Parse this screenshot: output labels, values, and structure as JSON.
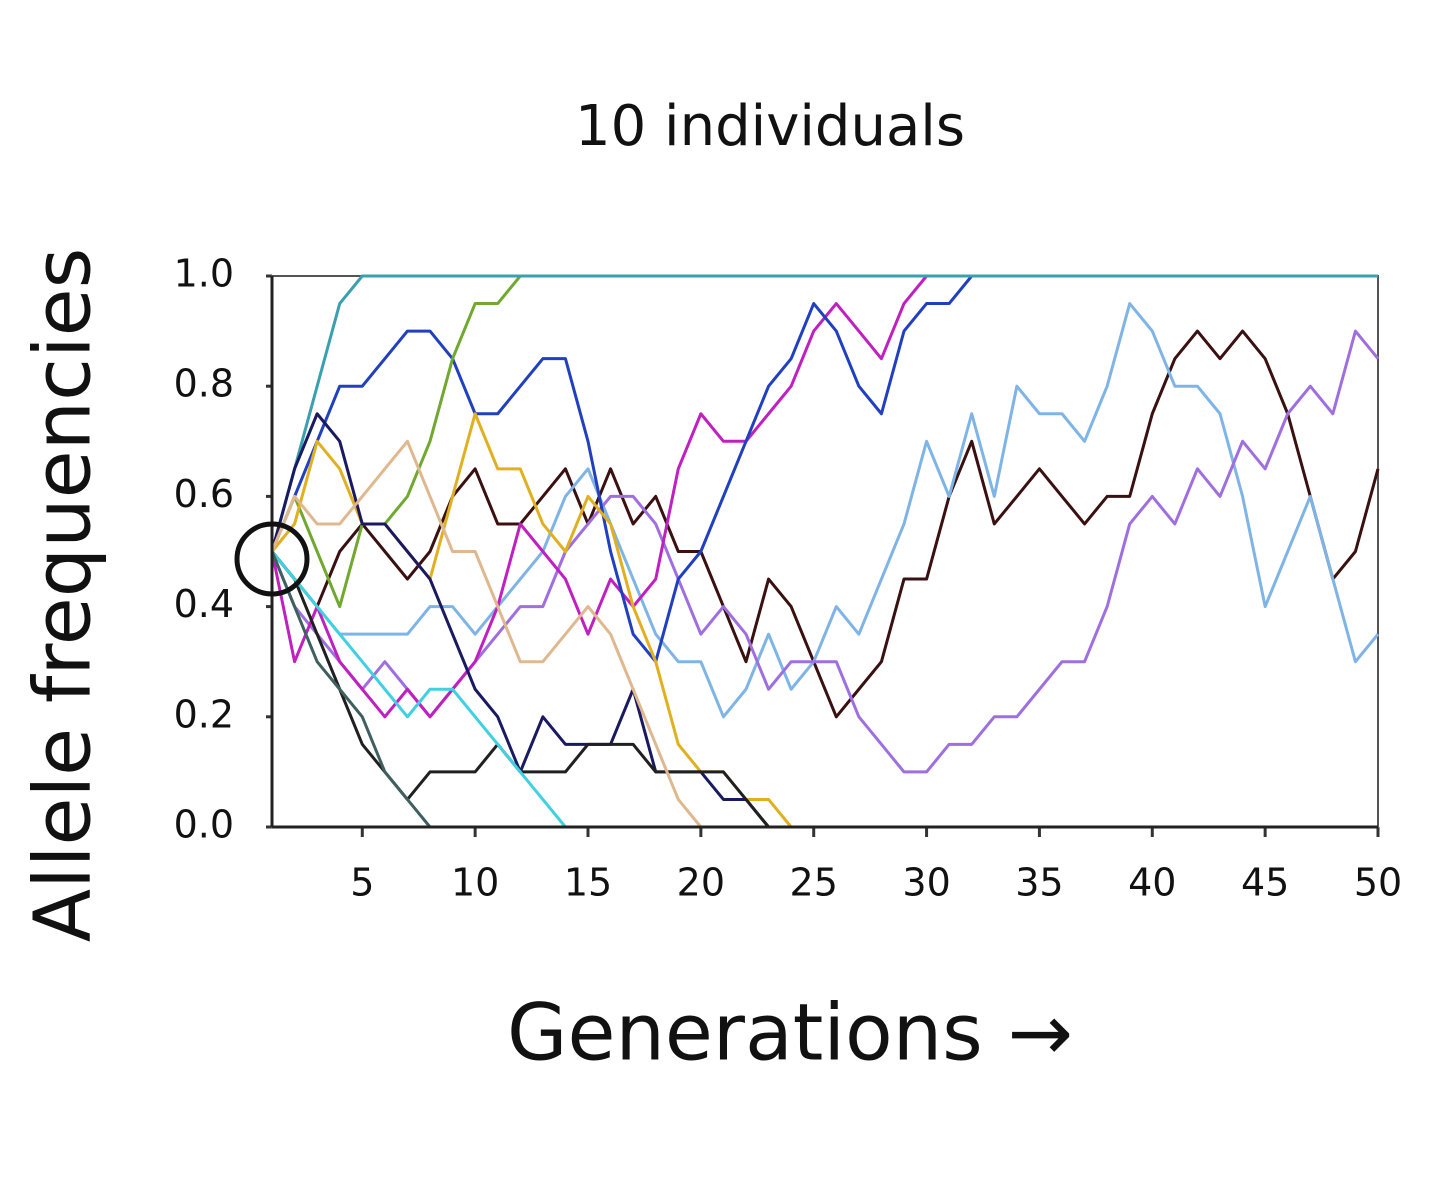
{
  "chart_data": {
    "type": "line",
    "title": "10 individuals",
    "x_label": "Generations →",
    "y_label": "Allele frequencies",
    "x": [
      1,
      2,
      3,
      4,
      5,
      6,
      7,
      8,
      9,
      10,
      11,
      12,
      13,
      14,
      15,
      16,
      17,
      18,
      19,
      20,
      21,
      22,
      23,
      24,
      25,
      26,
      27,
      28,
      29,
      30,
      31,
      32,
      33,
      34,
      35,
      36,
      37,
      38,
      39,
      40,
      41,
      42,
      43,
      44,
      45,
      46,
      47,
      48,
      49,
      50
    ],
    "xlim": [
      1,
      50
    ],
    "xticks": [
      5,
      10,
      15,
      20,
      25,
      30,
      35,
      40,
      45,
      50
    ],
    "ylim": [
      0,
      1
    ],
    "yticks": [
      {
        "value": 0,
        "label": "0.0"
      },
      0.2,
      0.4,
      0.6,
      0.8,
      {
        "value": 1,
        "label": "1.0"
      }
    ],
    "series": [
      {
        "color": "#3a1010",
        "values": [
          0.5,
          0.45,
          0.4,
          0.5,
          0.55,
          0.5,
          0.45,
          0.5,
          0.6,
          0.65,
          0.55,
          0.55,
          0.6,
          0.65,
          0.55,
          0.65,
          0.55,
          0.6,
          0.5,
          0.5,
          0.4,
          0.3,
          0.45,
          0.4,
          0.3,
          0.2,
          0.25,
          0.3,
          0.45,
          0.45,
          0.6,
          0.7,
          0.55,
          0.6,
          0.65,
          0.6,
          0.55,
          0.6,
          0.6,
          0.75,
          0.85,
          0.9,
          0.85,
          0.9,
          0.85,
          0.75,
          0.6,
          0.45,
          0.5,
          0.65
        ]
      },
      {
        "color": "#7fb4e6",
        "values": [
          0.5,
          0.45,
          0.4,
          0.35,
          0.35,
          0.35,
          0.35,
          0.4,
          0.4,
          0.35,
          0.4,
          0.45,
          0.5,
          0.6,
          0.65,
          0.55,
          0.45,
          0.35,
          0.3,
          0.3,
          0.2,
          0.25,
          0.35,
          0.25,
          0.3,
          0.4,
          0.35,
          0.45,
          0.55,
          0.7,
          0.6,
          0.75,
          0.6,
          0.8,
          0.75,
          0.75,
          0.7,
          0.8,
          0.95,
          0.9,
          0.8,
          0.8,
          0.75,
          0.6,
          0.4,
          0.5,
          0.6,
          0.45,
          0.3,
          0.35
        ]
      },
      {
        "color": "#9f6fe0",
        "values": [
          0.5,
          0.4,
          0.35,
          0.3,
          0.25,
          0.3,
          0.25,
          0.2,
          0.25,
          0.3,
          0.35,
          0.4,
          0.4,
          0.5,
          0.55,
          0.6,
          0.6,
          0.55,
          0.45,
          0.35,
          0.4,
          0.35,
          0.25,
          0.3,
          0.3,
          0.3,
          0.2,
          0.15,
          0.1,
          0.1,
          0.15,
          0.15,
          0.2,
          0.2,
          0.25,
          0.3,
          0.3,
          0.4,
          0.55,
          0.6,
          0.55,
          0.65,
          0.6,
          0.7,
          0.65,
          0.75,
          0.8,
          0.75,
          0.9,
          0.85
        ]
      },
      {
        "color": "#c020c0",
        "values": [
          0.5,
          0.3,
          0.4,
          0.3,
          0.25,
          0.2,
          0.25,
          0.2,
          0.25,
          0.3,
          0.4,
          0.55,
          0.5,
          0.45,
          0.35,
          0.45,
          0.4,
          0.45,
          0.65,
          0.75,
          0.7,
          0.7,
          0.75,
          0.8,
          0.9,
          0.95,
          0.9,
          0.85,
          0.95,
          1,
          1,
          1,
          1,
          1,
          1,
          1,
          1,
          1,
          1,
          1,
          1,
          1,
          1,
          1,
          1,
          1,
          1,
          1,
          1,
          1
        ]
      },
      {
        "color": "#2040c0",
        "values": [
          0.5,
          0.6,
          0.7,
          0.8,
          0.8,
          0.85,
          0.9,
          0.9,
          0.85,
          0.75,
          0.75,
          0.8,
          0.85,
          0.85,
          0.7,
          0.5,
          0.35,
          0.3,
          0.45,
          0.5,
          0.6,
          0.7,
          0.8,
          0.85,
          0.95,
          0.9,
          0.8,
          0.75,
          0.9,
          0.95,
          0.95,
          1,
          1,
          1,
          1,
          1,
          1,
          1,
          1,
          1,
          1,
          1,
          1,
          1,
          1,
          1,
          1,
          1,
          1,
          1
        ]
      },
      {
        "color": "#70a830",
        "values": [
          0.5,
          0.6,
          0.5,
          0.4,
          0.55,
          0.55,
          0.6,
          0.7,
          0.85,
          0.95,
          0.95,
          1,
          1,
          1,
          1,
          1,
          1,
          1,
          1,
          1,
          1,
          1,
          1,
          1,
          1,
          1,
          1,
          1,
          1,
          1,
          1,
          1,
          1,
          1,
          1,
          1,
          1,
          1,
          1,
          1,
          1,
          1,
          1,
          1,
          1,
          1,
          1,
          1,
          1,
          1
        ]
      },
      {
        "color": "#3aa0b0",
        "values": [
          0.5,
          0.65,
          0.8,
          0.95,
          1,
          1,
          1,
          1,
          1,
          1,
          1,
          1,
          1,
          1,
          1,
          1,
          1,
          1,
          1,
          1,
          1,
          1,
          1,
          1,
          1,
          1,
          1,
          1,
          1,
          1,
          1,
          1,
          1,
          1,
          1,
          1,
          1,
          1,
          1,
          1,
          1,
          1,
          1,
          1,
          1,
          1,
          1,
          1,
          1,
          1
        ]
      },
      {
        "color": "#e0b020",
        "values": [
          0.5,
          0.55,
          0.7,
          0.65,
          0.55,
          0.55,
          0.5,
          0.45,
          0.6,
          0.75,
          0.65,
          0.65,
          0.55,
          0.5,
          0.6,
          0.55,
          0.4,
          0.3,
          0.15,
          0.1,
          0.1,
          0.05,
          0.05,
          0,
          0,
          0,
          0,
          0,
          0,
          0,
          0,
          0,
          0,
          0,
          0,
          0,
          0,
          0,
          0,
          0,
          0,
          0,
          0,
          0,
          0,
          0,
          0,
          0,
          0,
          0
        ]
      },
      {
        "color": "#1a1a60",
        "values": [
          0.5,
          0.65,
          0.75,
          0.7,
          0.55,
          0.55,
          0.5,
          0.45,
          0.35,
          0.25,
          0.2,
          0.1,
          0.2,
          0.15,
          0.15,
          0.15,
          0.25,
          0.1,
          0.1,
          0.1,
          0.05,
          0.05,
          0,
          0,
          0,
          0,
          0,
          0,
          0,
          0,
          0,
          0,
          0,
          0,
          0,
          0,
          0,
          0,
          0,
          0,
          0,
          0,
          0,
          0,
          0,
          0,
          0,
          0,
          0,
          0
        ]
      },
      {
        "color": "#202020",
        "values": [
          0.5,
          0.45,
          0.35,
          0.25,
          0.15,
          0.1,
          0.05,
          0.1,
          0.1,
          0.1,
          0.15,
          0.1,
          0.1,
          0.1,
          0.15,
          0.15,
          0.15,
          0.1,
          0.1,
          0.1,
          0.1,
          0.05,
          0,
          0,
          0,
          0,
          0,
          0,
          0,
          0,
          0,
          0,
          0,
          0,
          0,
          0,
          0,
          0,
          0,
          0,
          0,
          0,
          0,
          0,
          0,
          0,
          0,
          0,
          0,
          0
        ]
      },
      {
        "color": "#40d0e0",
        "values": [
          0.5,
          0.45,
          0.4,
          0.35,
          0.3,
          0.25,
          0.2,
          0.25,
          0.25,
          0.2,
          0.15,
          0.1,
          0.05,
          0,
          0,
          0,
          0,
          0,
          0,
          0,
          0,
          0,
          0,
          0,
          0,
          0,
          0,
          0,
          0,
          0,
          0,
          0,
          0,
          0,
          0,
          0,
          0,
          0,
          0,
          0,
          0,
          0,
          0,
          0,
          0,
          0,
          0,
          0,
          0,
          0
        ]
      },
      {
        "color": "#e0b890",
        "values": [
          0.5,
          0.6,
          0.55,
          0.55,
          0.6,
          0.65,
          0.7,
          0.6,
          0.5,
          0.5,
          0.4,
          0.3,
          0.3,
          0.35,
          0.4,
          0.35,
          0.25,
          0.15,
          0.05,
          0,
          0,
          0,
          0,
          0,
          0,
          0,
          0,
          0,
          0,
          0,
          0,
          0,
          0,
          0,
          0,
          0,
          0,
          0,
          0,
          0,
          0,
          0,
          0,
          0,
          0,
          0,
          0,
          0,
          0,
          0
        ]
      },
      {
        "color": "#406060",
        "values": [
          0.5,
          0.4,
          0.3,
          0.25,
          0.2,
          0.1,
          0.05,
          0,
          0,
          0,
          0,
          0,
          0,
          0,
          0,
          0,
          0,
          0,
          0,
          0,
          0,
          0,
          0,
          0,
          0,
          0,
          0,
          0,
          0,
          0,
          0,
          0,
          0,
          0,
          0,
          0,
          0,
          0,
          0,
          0,
          0,
          0,
          0,
          0,
          0,
          0,
          0,
          0,
          0,
          0
        ]
      }
    ]
  }
}
